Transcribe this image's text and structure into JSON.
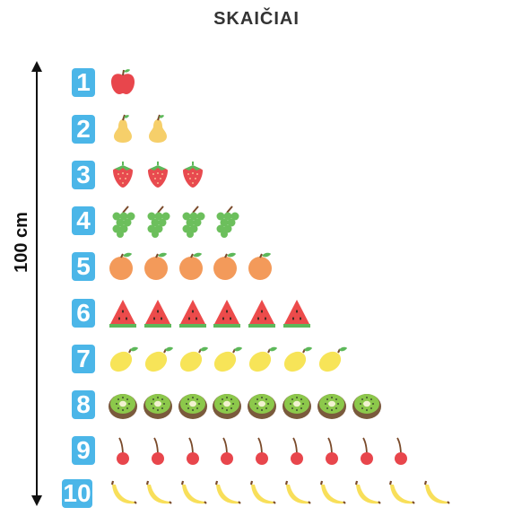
{
  "title": "SKAIČIAI",
  "measure_label": "100 cm",
  "rows": [
    {
      "number": "1",
      "fruit_icon": "apple-icon",
      "count": 1
    },
    {
      "number": "2",
      "fruit_icon": "pear-icon",
      "count": 2
    },
    {
      "number": "3",
      "fruit_icon": "strawberry-icon",
      "count": 3
    },
    {
      "number": "4",
      "fruit_icon": "grapes-icon",
      "count": 4
    },
    {
      "number": "5",
      "fruit_icon": "orange-icon",
      "count": 5
    },
    {
      "number": "6",
      "fruit_icon": "watermelon-icon",
      "count": 6
    },
    {
      "number": "7",
      "fruit_icon": "lemon-icon",
      "count": 7
    },
    {
      "number": "8",
      "fruit_icon": "kiwi-icon",
      "count": 8
    },
    {
      "number": "9",
      "fruit_icon": "cherry-icon",
      "count": 9
    },
    {
      "number": "10",
      "fruit_icon": "banana-icon",
      "count": 10
    }
  ],
  "colors": {
    "badge": "#4bb6e8",
    "apple": "#e8464c",
    "pear": "#f6cf6a",
    "strawberry": "#e84a4f",
    "grapes": "#6cbf5c",
    "orange": "#f39a5a",
    "watermelon": "#ec4b4b",
    "lemon": "#f7e458",
    "kiwi": "#7a5a3c",
    "cherry": "#e8464c",
    "banana": "#f8df5a"
  }
}
